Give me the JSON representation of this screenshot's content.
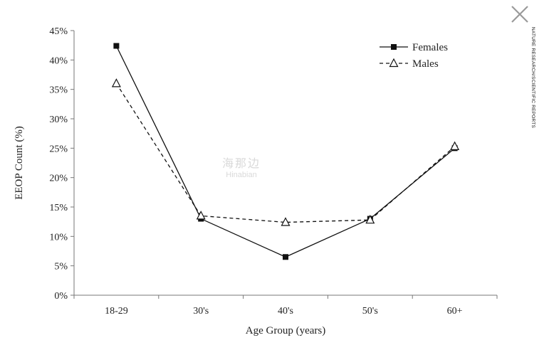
{
  "chart_data": {
    "type": "line",
    "title": "",
    "xlabel": "Age Group (years)",
    "ylabel": "EEOP Count (%)",
    "categories": [
      "18-29",
      "30's",
      "40's",
      "50's",
      "60+"
    ],
    "ylim": [
      0,
      45
    ],
    "yticks": [
      0,
      5,
      10,
      15,
      20,
      25,
      30,
      35,
      40,
      45
    ],
    "ytick_labels": [
      "0%",
      "5%",
      "10%",
      "15%",
      "20%",
      "25%",
      "30%",
      "35%",
      "40%",
      "45%"
    ],
    "grid": false,
    "legend_position": "top-right",
    "series": [
      {
        "name": "Females",
        "values": [
          42.4,
          13.0,
          6.5,
          13.0,
          25.0
        ],
        "marker": "square",
        "line": "solid",
        "color": "#111111"
      },
      {
        "name": "Males",
        "values": [
          36.0,
          13.5,
          12.4,
          12.8,
          25.3
        ],
        "marker": "open-triangle",
        "line": "dashed",
        "color": "#111111"
      }
    ]
  },
  "watermark": {
    "cn": "海那边",
    "en": "Hinabian"
  },
  "side_credit": "NATURE RESEARCH/SCIENTIFIC REPORTS",
  "close_icon": "close-icon"
}
